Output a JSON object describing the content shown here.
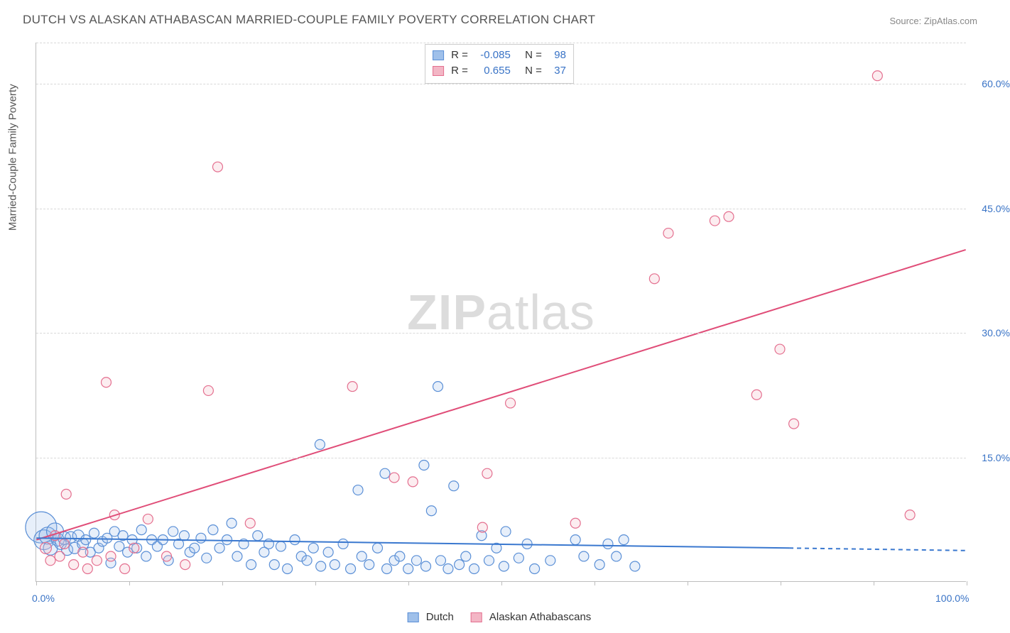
{
  "title": "DUTCH VS ALASKAN ATHABASCAN MARRIED-COUPLE FAMILY POVERTY CORRELATION CHART",
  "source_prefix": "Source: ",
  "source_name": "ZipAtlas.com",
  "y_axis_title": "Married-Couple Family Poverty",
  "watermark_zip": "ZIP",
  "watermark_atlas": "atlas",
  "chart": {
    "type": "scatter",
    "xlim": [
      0,
      100
    ],
    "ylim": [
      0,
      65
    ],
    "x_ticks": [
      0,
      10,
      20,
      30,
      40,
      50,
      60,
      70,
      80,
      90,
      100
    ],
    "x_tick_labels": {
      "0": "0.0%",
      "100": "100.0%"
    },
    "y_ticks": [
      15,
      30,
      45,
      60
    ],
    "y_tick_labels": {
      "15": "15.0%",
      "30": "30.0%",
      "45": "45.0%",
      "60": "60.0%"
    },
    "grid_color": "#d9d9d9",
    "axis_color": "#bdbdbd",
    "tick_label_color": "#3973c6",
    "series": {
      "dutch": {
        "label": "Dutch",
        "fill": "#9fc0ea",
        "stroke": "#5a8fd6",
        "r_label": "R =",
        "r_value": "-0.085",
        "n_label": "N =",
        "n_value": "98",
        "trend": {
          "x1": 0,
          "y1": 5.2,
          "x2": 81,
          "y2": 4.0,
          "color": "#3a78cf",
          "width": 2,
          "dash_extend": {
            "x2": 100,
            "y2": 3.7
          }
        },
        "points": [
          {
            "x": 0.5,
            "y": 6.5,
            "r": 22
          },
          {
            "x": 0.8,
            "y": 5.0,
            "r": 14
          },
          {
            "x": 1.2,
            "y": 5.5,
            "r": 12
          },
          {
            "x": 1.5,
            "y": 4.0,
            "r": 10
          },
          {
            "x": 2.0,
            "y": 6.0,
            "r": 12
          },
          {
            "x": 2.3,
            "y": 5.0,
            "r": 9
          },
          {
            "x": 2.6,
            "y": 4.5,
            "r": 8
          },
          {
            "x": 3.0,
            "y": 5.2,
            "r": 9
          },
          {
            "x": 3.3,
            "y": 3.8,
            "r": 8
          },
          {
            "x": 3.7,
            "y": 5.3,
            "r": 8
          },
          {
            "x": 4.1,
            "y": 4.0,
            "r": 8
          },
          {
            "x": 4.5,
            "y": 5.5,
            "r": 8
          },
          {
            "x": 5.0,
            "y": 4.5,
            "r": 8
          },
          {
            "x": 5.3,
            "y": 5.0,
            "r": 7
          },
          {
            "x": 5.8,
            "y": 3.5,
            "r": 7
          },
          {
            "x": 6.2,
            "y": 5.8,
            "r": 7
          },
          {
            "x": 6.7,
            "y": 4.0,
            "r": 7
          },
          {
            "x": 7.1,
            "y": 4.8,
            "r": 7
          },
          {
            "x": 7.6,
            "y": 5.2,
            "r": 7
          },
          {
            "x": 8.0,
            "y": 2.2,
            "r": 7
          },
          {
            "x": 8.4,
            "y": 6.0,
            "r": 7
          },
          {
            "x": 8.9,
            "y": 4.2,
            "r": 7
          },
          {
            "x": 9.3,
            "y": 5.5,
            "r": 7
          },
          {
            "x": 9.8,
            "y": 3.5,
            "r": 7
          },
          {
            "x": 10.3,
            "y": 5.0,
            "r": 7
          },
          {
            "x": 10.8,
            "y": 4.0,
            "r": 7
          },
          {
            "x": 11.3,
            "y": 6.2,
            "r": 7
          },
          {
            "x": 11.8,
            "y": 3.0,
            "r": 7
          },
          {
            "x": 12.4,
            "y": 5.0,
            "r": 7
          },
          {
            "x": 13.0,
            "y": 4.2,
            "r": 7
          },
          {
            "x": 13.6,
            "y": 5.0,
            "r": 7
          },
          {
            "x": 14.2,
            "y": 2.5,
            "r": 7
          },
          {
            "x": 14.7,
            "y": 6.0,
            "r": 7
          },
          {
            "x": 15.3,
            "y": 4.5,
            "r": 7
          },
          {
            "x": 15.9,
            "y": 5.5,
            "r": 7
          },
          {
            "x": 16.5,
            "y": 3.5,
            "r": 7
          },
          {
            "x": 17.0,
            "y": 4.0,
            "r": 7
          },
          {
            "x": 17.7,
            "y": 5.2,
            "r": 7
          },
          {
            "x": 18.3,
            "y": 2.8,
            "r": 7
          },
          {
            "x": 19.0,
            "y": 6.2,
            "r": 7
          },
          {
            "x": 19.7,
            "y": 4.0,
            "r": 7
          },
          {
            "x": 20.5,
            "y": 5.0,
            "r": 7
          },
          {
            "x": 21.0,
            "y": 7.0,
            "r": 7
          },
          {
            "x": 21.6,
            "y": 3.0,
            "r": 7
          },
          {
            "x": 22.3,
            "y": 4.5,
            "r": 7
          },
          {
            "x": 23.1,
            "y": 2.0,
            "r": 7
          },
          {
            "x": 23.8,
            "y": 5.5,
            "r": 7
          },
          {
            "x": 24.5,
            "y": 3.5,
            "r": 7
          },
          {
            "x": 25.0,
            "y": 4.5,
            "r": 7
          },
          {
            "x": 25.6,
            "y": 2.0,
            "r": 7
          },
          {
            "x": 26.3,
            "y": 4.2,
            "r": 7
          },
          {
            "x": 27.0,
            "y": 1.5,
            "r": 7
          },
          {
            "x": 27.8,
            "y": 5.0,
            "r": 7
          },
          {
            "x": 28.5,
            "y": 3.0,
            "r": 7
          },
          {
            "x": 29.1,
            "y": 2.5,
            "r": 7
          },
          {
            "x": 29.8,
            "y": 4.0,
            "r": 7
          },
          {
            "x": 30.5,
            "y": 16.5,
            "r": 7
          },
          {
            "x": 30.6,
            "y": 1.8,
            "r": 7
          },
          {
            "x": 31.4,
            "y": 3.5,
            "r": 7
          },
          {
            "x": 32.1,
            "y": 2.0,
            "r": 7
          },
          {
            "x": 33.0,
            "y": 4.5,
            "r": 7
          },
          {
            "x": 33.8,
            "y": 1.5,
            "r": 7
          },
          {
            "x": 34.6,
            "y": 11.0,
            "r": 7
          },
          {
            "x": 35.0,
            "y": 3.0,
            "r": 7
          },
          {
            "x": 35.8,
            "y": 2.0,
            "r": 7
          },
          {
            "x": 36.7,
            "y": 4.0,
            "r": 7
          },
          {
            "x": 37.5,
            "y": 13.0,
            "r": 7
          },
          {
            "x": 37.7,
            "y": 1.5,
            "r": 7
          },
          {
            "x": 38.5,
            "y": 2.5,
            "r": 7
          },
          {
            "x": 39.1,
            "y": 3.0,
            "r": 7
          },
          {
            "x": 40.0,
            "y": 1.5,
            "r": 7
          },
          {
            "x": 40.9,
            "y": 2.5,
            "r": 7
          },
          {
            "x": 41.7,
            "y": 14.0,
            "r": 7
          },
          {
            "x": 41.9,
            "y": 1.8,
            "r": 7
          },
          {
            "x": 42.5,
            "y": 8.5,
            "r": 7
          },
          {
            "x": 43.2,
            "y": 23.5,
            "r": 7
          },
          {
            "x": 43.5,
            "y": 2.5,
            "r": 7
          },
          {
            "x": 44.3,
            "y": 1.5,
            "r": 7
          },
          {
            "x": 44.9,
            "y": 11.5,
            "r": 7
          },
          {
            "x": 45.5,
            "y": 2.0,
            "r": 7
          },
          {
            "x": 46.2,
            "y": 3.0,
            "r": 7
          },
          {
            "x": 47.1,
            "y": 1.5,
            "r": 7
          },
          {
            "x": 47.9,
            "y": 5.5,
            "r": 7
          },
          {
            "x": 48.7,
            "y": 2.5,
            "r": 7
          },
          {
            "x": 49.5,
            "y": 4.0,
            "r": 7
          },
          {
            "x": 50.3,
            "y": 1.8,
            "r": 7
          },
          {
            "x": 50.5,
            "y": 6.0,
            "r": 7
          },
          {
            "x": 51.9,
            "y": 2.8,
            "r": 7
          },
          {
            "x": 52.8,
            "y": 4.5,
            "r": 7
          },
          {
            "x": 53.6,
            "y": 1.5,
            "r": 7
          },
          {
            "x": 55.3,
            "y": 2.5,
            "r": 7
          },
          {
            "x": 58.0,
            "y": 5.0,
            "r": 7
          },
          {
            "x": 58.9,
            "y": 3.0,
            "r": 7
          },
          {
            "x": 60.6,
            "y": 2.0,
            "r": 7
          },
          {
            "x": 61.5,
            "y": 4.5,
            "r": 7
          },
          {
            "x": 62.4,
            "y": 3.0,
            "r": 7
          },
          {
            "x": 63.2,
            "y": 5.0,
            "r": 7
          },
          {
            "x": 64.4,
            "y": 1.8,
            "r": 7
          }
        ]
      },
      "athabascan": {
        "label": "Alaskan Athabascans",
        "fill": "#f3b6c5",
        "stroke": "#e46f8f",
        "r_label": "R =",
        "r_value": "0.655",
        "n_label": "N =",
        "n_value": "37",
        "trend": {
          "x1": 0,
          "y1": 5.0,
          "x2": 100,
          "y2": 40.0,
          "color": "#e04d78",
          "width": 2
        },
        "points": [
          {
            "x": 1.0,
            "y": 4.0,
            "r": 8
          },
          {
            "x": 1.5,
            "y": 2.5,
            "r": 7
          },
          {
            "x": 2.0,
            "y": 5.5,
            "r": 7
          },
          {
            "x": 2.5,
            "y": 3.0,
            "r": 7
          },
          {
            "x": 3.0,
            "y": 4.5,
            "r": 7
          },
          {
            "x": 3.2,
            "y": 10.5,
            "r": 7
          },
          {
            "x": 4.0,
            "y": 2.0,
            "r": 7
          },
          {
            "x": 5.0,
            "y": 3.5,
            "r": 7
          },
          {
            "x": 5.5,
            "y": 1.5,
            "r": 7
          },
          {
            "x": 6.5,
            "y": 2.5,
            "r": 7
          },
          {
            "x": 7.5,
            "y": 24.0,
            "r": 7
          },
          {
            "x": 8.0,
            "y": 3.0,
            "r": 7
          },
          {
            "x": 8.4,
            "y": 8.0,
            "r": 7
          },
          {
            "x": 9.5,
            "y": 1.5,
            "r": 7
          },
          {
            "x": 10.5,
            "y": 4.0,
            "r": 7
          },
          {
            "x": 12.0,
            "y": 7.5,
            "r": 7
          },
          {
            "x": 14.0,
            "y": 3.0,
            "r": 7
          },
          {
            "x": 16.0,
            "y": 2.0,
            "r": 7
          },
          {
            "x": 18.5,
            "y": 23.0,
            "r": 7
          },
          {
            "x": 19.5,
            "y": 50.0,
            "r": 7
          },
          {
            "x": 23.0,
            "y": 7.0,
            "r": 7
          },
          {
            "x": 34.0,
            "y": 23.5,
            "r": 7
          },
          {
            "x": 38.5,
            "y": 12.5,
            "r": 7
          },
          {
            "x": 40.5,
            "y": 12.0,
            "r": 7
          },
          {
            "x": 48.0,
            "y": 6.5,
            "r": 7
          },
          {
            "x": 48.5,
            "y": 13.0,
            "r": 7
          },
          {
            "x": 51.0,
            "y": 21.5,
            "r": 7
          },
          {
            "x": 58.0,
            "y": 7.0,
            "r": 7
          },
          {
            "x": 66.5,
            "y": 36.5,
            "r": 7
          },
          {
            "x": 68.0,
            "y": 42.0,
            "r": 7
          },
          {
            "x": 73.0,
            "y": 43.5,
            "r": 7
          },
          {
            "x": 74.5,
            "y": 44.0,
            "r": 7
          },
          {
            "x": 77.5,
            "y": 22.5,
            "r": 7
          },
          {
            "x": 80.0,
            "y": 28.0,
            "r": 7
          },
          {
            "x": 81.5,
            "y": 19.0,
            "r": 7
          },
          {
            "x": 90.5,
            "y": 61.0,
            "r": 7
          },
          {
            "x": 94.0,
            "y": 8.0,
            "r": 7
          }
        ]
      }
    }
  }
}
